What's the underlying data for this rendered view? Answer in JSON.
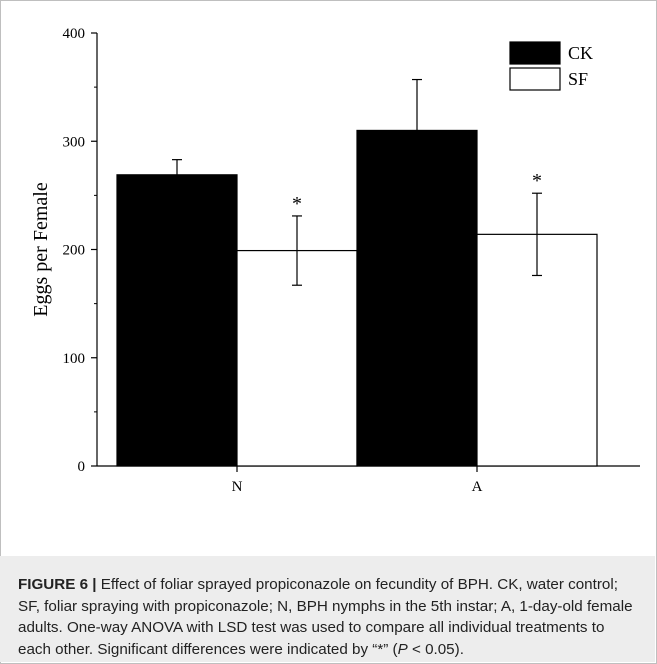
{
  "chart_data": {
    "type": "bar",
    "categories": [
      "N",
      "A"
    ],
    "series": [
      {
        "name": "CK",
        "values": [
          269,
          310
        ],
        "errors": [
          14,
          47
        ],
        "color": "#000000",
        "significance": [
          "",
          ""
        ]
      },
      {
        "name": "SF",
        "values": [
          199,
          214
        ],
        "errors": [
          32,
          38
        ],
        "color": "#ffffff",
        "significance": [
          "*",
          "*"
        ]
      }
    ],
    "ylabel": "Eggs per Female",
    "xlabel": "",
    "ylim": [
      0,
      400
    ],
    "yticks": [
      "0",
      "100",
      "200",
      "300",
      "400"
    ],
    "legend": "top-right",
    "grid": false
  },
  "caption": {
    "label": "FIGURE 6 |",
    "text": " Effect of foliar sprayed propiconazole on fecundity of BPH. CK, water control; SF, foliar spraying with propiconazole; N, BPH nymphs in the 5th instar; A, 1-day-old female adults. One-way ANOVA with LSD test was used to compare all individual treatments to each other. Significant differences were indicated by “*” (",
    "p_symbol": "P",
    "p_tail": " < 0.05)."
  }
}
